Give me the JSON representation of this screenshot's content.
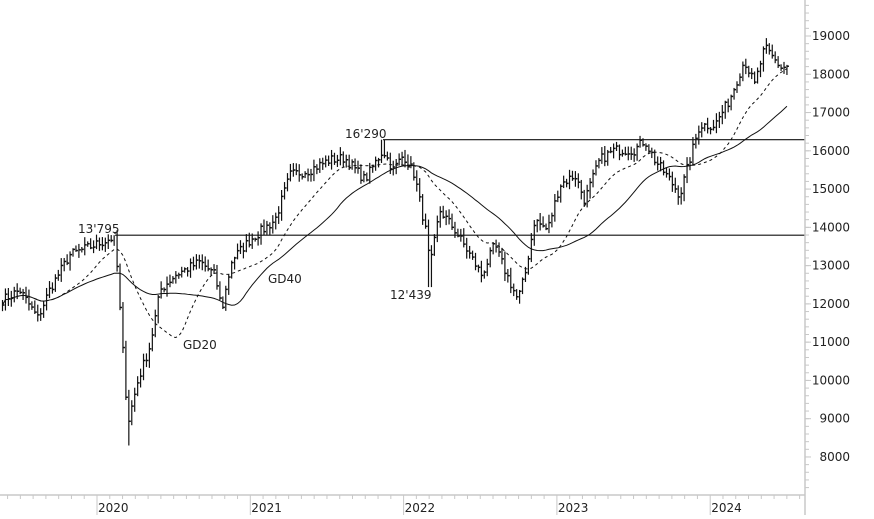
{
  "chart_data": {
    "type": "ohlc",
    "period": "weekly",
    "xlim": [
      "2019-05-15",
      "2024-07-15"
    ],
    "ylim": [
      7000,
      20000
    ],
    "x_tick_labels": [
      "2020",
      "2021",
      "2022",
      "2023",
      "2024"
    ],
    "y_tick_labels": [
      "19000",
      "18000",
      "17000",
      "16000",
      "15000",
      "14000",
      "13000",
      "12000",
      "11000",
      "10000",
      "9000",
      "8000"
    ],
    "y_ticks": [
      19000,
      18000,
      17000,
      16000,
      15000,
      14000,
      13000,
      12000,
      11000,
      10000,
      9000,
      8000
    ],
    "grid": false,
    "close_anchors": [
      [
        "2019-05-21",
        12100
      ],
      [
        "2019-07-01",
        12360
      ],
      [
        "2019-08-13",
        11630
      ],
      [
        "2019-09-10",
        12360
      ],
      [
        "2019-10-28",
        13280
      ],
      [
        "2019-12-27",
        13540
      ],
      [
        "2020-02-13",
        13750
      ],
      [
        "2020-02-25",
        11840
      ],
      [
        "2020-03-15",
        8900
      ],
      [
        "2020-04-08",
        10000
      ],
      [
        "2020-05-07",
        10920
      ],
      [
        "2020-05-31",
        12360
      ],
      [
        "2020-07-05",
        12750
      ],
      [
        "2020-09-03",
        13100
      ],
      [
        "2020-10-09",
        12750
      ],
      [
        "2020-10-25",
        11840
      ],
      [
        "2020-11-18",
        13150
      ],
      [
        "2020-12-31",
        13670
      ],
      [
        "2021-03-01",
        14190
      ],
      [
        "2021-04-06",
        15370
      ],
      [
        "2021-05-23",
        15500
      ],
      [
        "2021-07-09",
        15760
      ],
      [
        "2021-08-14",
        15810
      ],
      [
        "2021-10-01",
        15240
      ],
      [
        "2021-11-13",
        16020
      ],
      [
        "2021-12-07",
        15500
      ],
      [
        "2022-01-01",
        15890
      ],
      [
        "2022-01-27",
        15370
      ],
      [
        "2022-02-27",
        13670
      ],
      [
        "2022-03-04",
        12880
      ],
      [
        "2022-03-28",
        14450
      ],
      [
        "2022-05-03",
        13930
      ],
      [
        "2022-06-08",
        13280
      ],
      [
        "2022-07-06",
        12750
      ],
      [
        "2022-08-06",
        13540
      ],
      [
        "2022-08-30",
        12880
      ],
      [
        "2022-09-30",
        12100
      ],
      [
        "2022-10-17",
        12750
      ],
      [
        "2022-11-09",
        14190
      ],
      [
        "2022-12-10",
        13930
      ],
      [
        "2023-01-08",
        15110
      ],
      [
        "2023-02-13",
        15370
      ],
      [
        "2023-03-08",
        14710
      ],
      [
        "2023-04-13",
        15760
      ],
      [
        "2023-05-18",
        16020
      ],
      [
        "2023-07-05",
        16020
      ],
      [
        "2023-07-29",
        16280
      ],
      [
        "2023-08-22",
        15760
      ],
      [
        "2023-09-27",
        15240
      ],
      [
        "2023-10-21",
        14840
      ],
      [
        "2023-11-13",
        15760
      ],
      [
        "2023-12-07",
        16670
      ],
      [
        "2024-01-12",
        16670
      ],
      [
        "2024-02-16",
        17330
      ],
      [
        "2024-03-23",
        18370
      ],
      [
        "2024-04-16",
        17720
      ],
      [
        "2024-05-10",
        18690
      ],
      [
        "2024-06-03",
        18370
      ],
      [
        "2024-06-20",
        18160
      ],
      [
        "2024-07-09",
        18240
      ]
    ],
    "horizontal_levels": [
      {
        "value": 13795,
        "label": "13'795",
        "from": "2020-02-13"
      },
      {
        "value": 16290,
        "label": "16'290",
        "from": "2021-11-13"
      }
    ],
    "annotations": [
      {
        "text": "12'439",
        "date": "2022-03-04",
        "value": 12439
      }
    ],
    "moving_averages": [
      {
        "name": "GD20",
        "period": 20,
        "style": "dashed",
        "label_date": "2020-06-15",
        "label_value": 11000
      },
      {
        "name": "GD40",
        "period": 40,
        "style": "solid",
        "label_date": "2021-01-10",
        "label_value": 12500
      }
    ],
    "colors": {
      "bars": "#111111",
      "axis": "#c8c8c8",
      "text": "#222222"
    }
  }
}
